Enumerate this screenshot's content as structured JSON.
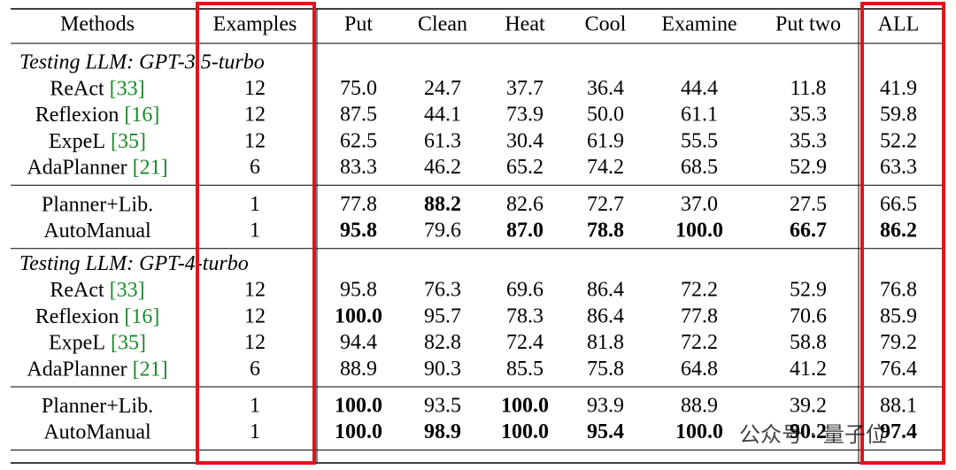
{
  "header": [
    "Methods",
    "Examples",
    "Put",
    "Clean",
    "Heat",
    "Cool",
    "Examine",
    "Put two",
    "ALL"
  ],
  "sections": [
    {
      "label": "Testing LLM: GPT-3.5-turbo",
      "groups": [
        [
          {
            "method": "ReAct",
            "ref": "[33]",
            "cells": [
              {
                "text": "12"
              },
              {
                "text": "75.0"
              },
              {
                "text": "24.7"
              },
              {
                "text": "37.7"
              },
              {
                "text": "36.4"
              },
              {
                "text": "44.4"
              },
              {
                "text": "11.8"
              },
              {
                "text": "41.9"
              }
            ]
          },
          {
            "method": "Reflexion",
            "ref": "[16]",
            "cells": [
              {
                "text": "12"
              },
              {
                "text": "87.5"
              },
              {
                "text": "44.1"
              },
              {
                "text": "73.9"
              },
              {
                "text": "50.0"
              },
              {
                "text": "61.1"
              },
              {
                "text": "35.3"
              },
              {
                "text": "59.8"
              }
            ]
          },
          {
            "method": "ExpeL",
            "ref": "[35]",
            "cells": [
              {
                "text": "12"
              },
              {
                "text": "62.5"
              },
              {
                "text": "61.3"
              },
              {
                "text": "30.4"
              },
              {
                "text": "61.9"
              },
              {
                "text": "55.5"
              },
              {
                "text": "35.3"
              },
              {
                "text": "52.2"
              }
            ]
          },
          {
            "method": "AdaPlanner",
            "ref": "[21]",
            "cells": [
              {
                "text": "6"
              },
              {
                "text": "83.3"
              },
              {
                "text": "46.2"
              },
              {
                "text": "65.2"
              },
              {
                "text": "74.2"
              },
              {
                "text": "68.5"
              },
              {
                "text": "52.9"
              },
              {
                "text": "63.3"
              }
            ]
          }
        ],
        [
          {
            "method": "Planner+Lib.",
            "cells": [
              {
                "text": "1"
              },
              {
                "text": "77.8"
              },
              {
                "text": "88.2",
                "bold": true
              },
              {
                "text": "82.6"
              },
              {
                "text": "72.7"
              },
              {
                "text": "37.0"
              },
              {
                "text": "27.5"
              },
              {
                "text": "66.5"
              }
            ]
          },
          {
            "method": "AutoManual",
            "cells": [
              {
                "text": "1"
              },
              {
                "text": "95.8",
                "bold": true
              },
              {
                "text": "79.6"
              },
              {
                "text": "87.0",
                "bold": true
              },
              {
                "text": "78.8",
                "bold": true
              },
              {
                "text": "100.0",
                "bold": true
              },
              {
                "text": "66.7",
                "bold": true
              },
              {
                "text": "86.2",
                "bold": true
              }
            ]
          }
        ]
      ]
    },
    {
      "label": "Testing LLM: GPT-4-turbo",
      "groups": [
        [
          {
            "method": "ReAct",
            "ref": "[33]",
            "cells": [
              {
                "text": "12"
              },
              {
                "text": "95.8"
              },
              {
                "text": "76.3"
              },
              {
                "text": "69.6"
              },
              {
                "text": "86.4"
              },
              {
                "text": "72.2"
              },
              {
                "text": "52.9"
              },
              {
                "text": "76.8"
              }
            ]
          },
          {
            "method": "Reflexion",
            "ref": "[16]",
            "cells": [
              {
                "text": "12"
              },
              {
                "text": "100.0",
                "bold": true
              },
              {
                "text": "95.7"
              },
              {
                "text": "78.3"
              },
              {
                "text": "86.4"
              },
              {
                "text": "77.8"
              },
              {
                "text": "70.6"
              },
              {
                "text": "85.9"
              }
            ]
          },
          {
            "method": "ExpeL",
            "ref": "[35]",
            "cells": [
              {
                "text": "12"
              },
              {
                "text": "94.4"
              },
              {
                "text": "82.8"
              },
              {
                "text": "72.4"
              },
              {
                "text": "81.8"
              },
              {
                "text": "72.2"
              },
              {
                "text": "58.8"
              },
              {
                "text": "79.2"
              }
            ]
          },
          {
            "method": "AdaPlanner",
            "ref": "[21]",
            "cells": [
              {
                "text": "6"
              },
              {
                "text": "88.9"
              },
              {
                "text": "90.3"
              },
              {
                "text": "85.5"
              },
              {
                "text": "75.8"
              },
              {
                "text": "64.8"
              },
              {
                "text": "41.2"
              },
              {
                "text": "76.4"
              }
            ]
          }
        ],
        [
          {
            "method": "Planner+Lib.",
            "cells": [
              {
                "text": "1"
              },
              {
                "text": "100.0",
                "bold": true
              },
              {
                "text": "93.5"
              },
              {
                "text": "100.0",
                "bold": true
              },
              {
                "text": "93.9"
              },
              {
                "text": "88.9"
              },
              {
                "text": "39.2"
              },
              {
                "text": "88.1"
              }
            ]
          },
          {
            "method": "AutoManual",
            "cells": [
              {
                "text": "1"
              },
              {
                "text": "100.0",
                "bold": true
              },
              {
                "text": "98.9",
                "bold": true
              },
              {
                "text": "100.0",
                "bold": true
              },
              {
                "text": "95.4",
                "bold": true
              },
              {
                "text": "100.0",
                "bold": true
              },
              {
                "text": "90.2",
                "bold": true
              },
              {
                "text": "97.4",
                "bold": true
              }
            ]
          }
        ]
      ]
    }
  ],
  "watermark": "公众号 · 量子位"
}
